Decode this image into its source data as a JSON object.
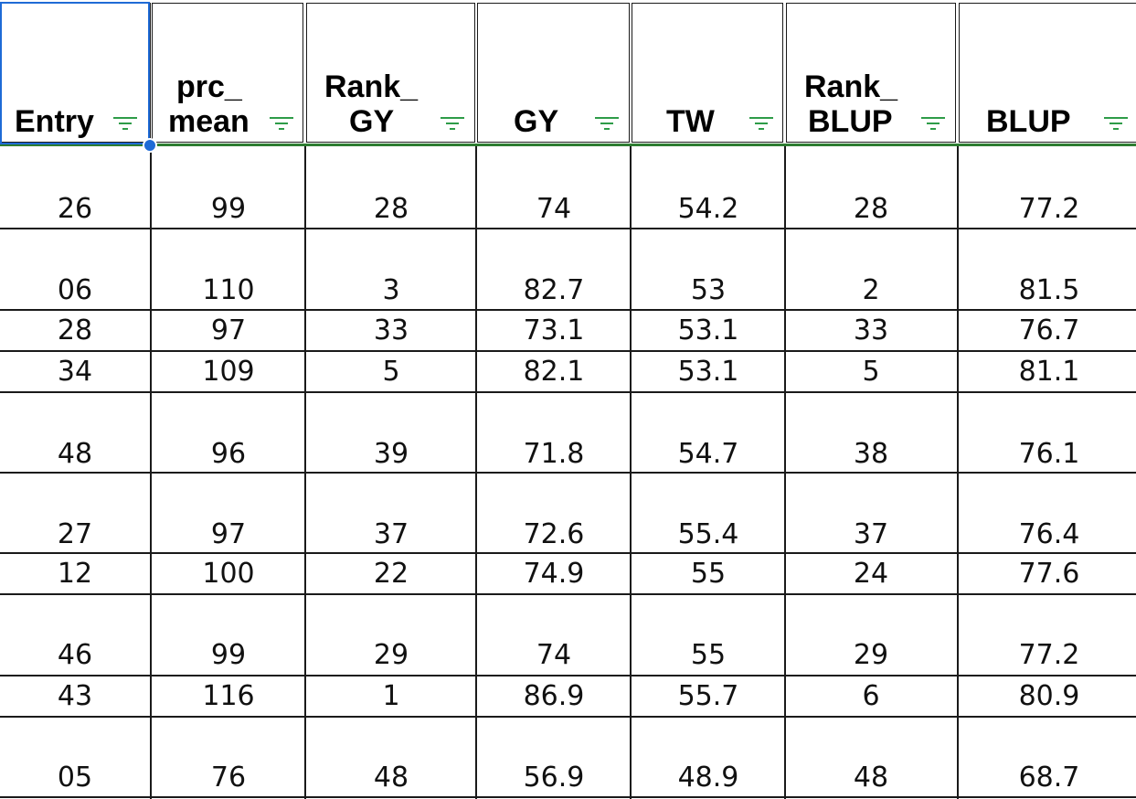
{
  "headers": {
    "entry": [
      "Entry"
    ],
    "prc_mean": [
      "prc_",
      "mean"
    ],
    "rank_gy": [
      "Rank_",
      "GY"
    ],
    "gy": [
      "GY"
    ],
    "tw": [
      "TW"
    ],
    "rank_blup": [
      "Rank_",
      "BLUP"
    ],
    "blup": [
      "BLUP"
    ]
  },
  "filter_icon": "filter-icon",
  "colors": {
    "filter": "#2e9c48",
    "selection": "#1f6bd6",
    "header_rule": "#2e7d32"
  },
  "rows": [
    [
      "26",
      "99",
      "28",
      "74",
      "54.2",
      "28",
      "77.2"
    ],
    [
      "06",
      "110",
      "3",
      "82.7",
      "53",
      "2",
      "81.5"
    ],
    [
      "28",
      "97",
      "33",
      "73.1",
      "53.1",
      "33",
      "76.7"
    ],
    [
      "34",
      "109",
      "5",
      "82.1",
      "53.1",
      "5",
      "81.1"
    ],
    [
      "48",
      "96",
      "39",
      "71.8",
      "54.7",
      "38",
      "76.1"
    ],
    [
      "27",
      "97",
      "37",
      "72.6",
      "55.4",
      "37",
      "76.4"
    ],
    [
      "12",
      "100",
      "22",
      "74.9",
      "55",
      "24",
      "77.6"
    ],
    [
      "46",
      "99",
      "29",
      "74",
      "55",
      "29",
      "77.2"
    ],
    [
      "43",
      "116",
      "1",
      "86.9",
      "55.7",
      "6",
      "80.9"
    ],
    [
      "05",
      "76",
      "48",
      "56.9",
      "48.9",
      "48",
      "68.7"
    ]
  ]
}
